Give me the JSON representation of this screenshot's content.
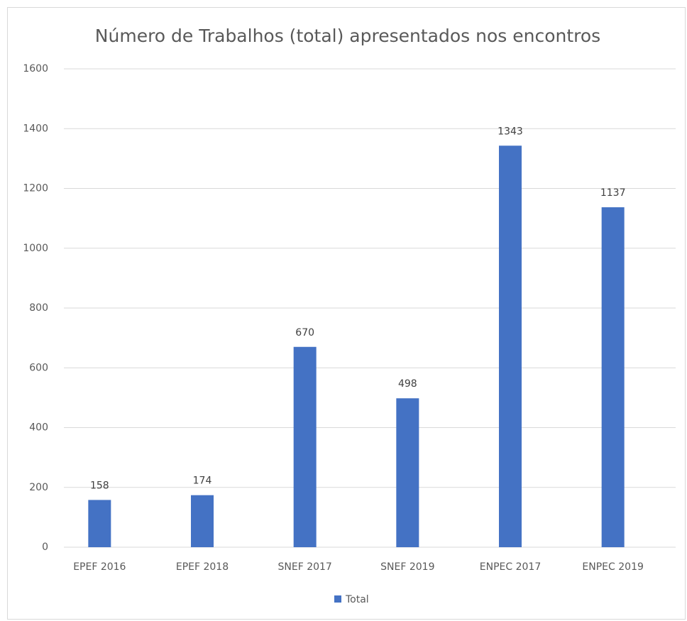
{
  "chart_data": {
    "type": "bar",
    "title": "Número de Trabalhos (total) apresentados nos encontros",
    "categories": [
      "EPEF 2016",
      "EPEF 2018",
      "SNEF 2017",
      "SNEF 2019",
      "ENPEC 2017",
      "ENPEC 2019"
    ],
    "series": [
      {
        "name": "Total",
        "color": "#4472c4",
        "values": [
          158,
          174,
          670,
          498,
          1343,
          1137
        ]
      }
    ],
    "ylim": [
      0,
      1600
    ],
    "yticks": [
      0,
      200,
      400,
      600,
      800,
      1000,
      1200,
      1400,
      1600
    ],
    "grid": true,
    "legend": "bottom"
  }
}
